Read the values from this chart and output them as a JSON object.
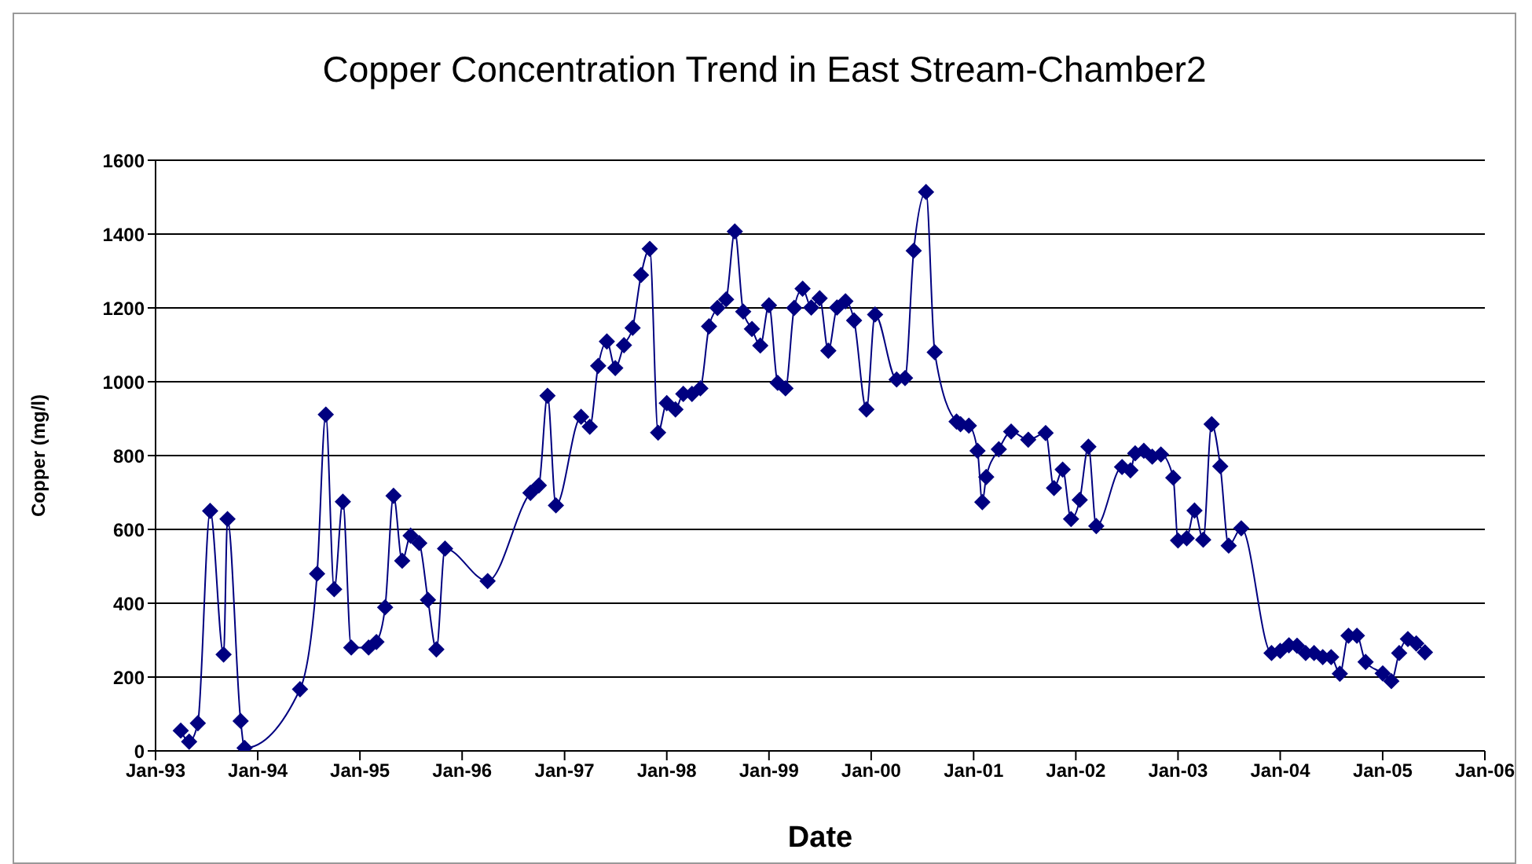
{
  "chart_data": {
    "type": "line",
    "title": "Copper Concentration Trend in East Stream-Chamber2",
    "xlabel": "Date",
    "ylabel": "Copper (mg/l)",
    "x": [
      "1993-04-01",
      "1993-05-01",
      "1993-06-01",
      "1993-07-15",
      "1993-09-01",
      "1993-09-15",
      "1993-11-01",
      "1993-11-15",
      "1994-06-01",
      "1994-08-01",
      "1994-09-01",
      "1994-10-01",
      "1994-11-01",
      "1994-12-01",
      "1995-02-01",
      "1995-03-01",
      "1995-04-01",
      "1995-05-01",
      "1995-06-01",
      "1995-07-01",
      "1995-08-01",
      "1995-09-01",
      "1995-10-01",
      "1995-11-01",
      "1996-04-01",
      "1996-09-01",
      "1996-10-01",
      "1996-11-01",
      "1996-12-01",
      "1997-03-01",
      "1997-04-01",
      "1997-05-01",
      "1997-06-01",
      "1997-07-01",
      "1997-08-01",
      "1997-09-01",
      "1997-10-01",
      "1997-11-01",
      "1997-12-01",
      "1998-01-01",
      "1998-02-01",
      "1998-03-01",
      "1998-04-01",
      "1998-05-01",
      "1998-06-01",
      "1998-07-01",
      "1998-08-01",
      "1998-09-01",
      "1998-10-01",
      "1998-11-01",
      "1998-12-01",
      "1999-01-01",
      "1999-02-01",
      "1999-03-01",
      "1999-04-01",
      "1999-05-01",
      "1999-06-01",
      "1999-07-01",
      "1999-08-01",
      "1999-09-01",
      "1999-10-01",
      "1999-11-01",
      "1999-12-15",
      "2000-01-15",
      "2000-04-01",
      "2000-05-01",
      "2000-06-01",
      "2000-07-15",
      "2000-08-15",
      "2000-11-01",
      "2000-11-15",
      "2000-12-15",
      "2001-01-15",
      "2001-02-01",
      "2001-02-15",
      "2001-04-01",
      "2001-05-15",
      "2001-07-15",
      "2001-09-15",
      "2001-10-15",
      "2001-11-15",
      "2001-12-15",
      "2002-01-15",
      "2002-02-15",
      "2002-03-15",
      "2002-06-15",
      "2002-07-15",
      "2002-08-01",
      "2002-09-01",
      "2002-10-01",
      "2002-11-01",
      "2002-12-15",
      "2003-01-01",
      "2003-02-01",
      "2003-03-01",
      "2003-04-01",
      "2003-05-01",
      "2003-06-01",
      "2003-07-01",
      "2003-08-15",
      "2003-12-01",
      "2004-01-01",
      "2004-02-01",
      "2004-03-01",
      "2004-04-01",
      "2004-05-01",
      "2004-06-01",
      "2004-07-01",
      "2004-08-01",
      "2004-09-01",
      "2004-10-01",
      "2004-11-01",
      "2005-01-01",
      "2005-02-01",
      "2005-03-01",
      "2005-04-01",
      "2005-05-01",
      "2005-06-01"
    ],
    "series": [
      {
        "color": "#000080",
        "values": [
          55,
          25,
          75,
          650,
          261,
          628,
          81,
          8,
          167,
          480,
          911,
          438,
          675,
          280,
          280,
          295,
          389,
          691,
          515,
          583,
          563,
          409,
          275,
          548,
          460,
          699,
          719,
          962,
          665,
          905,
          878,
          1043,
          1109,
          1037,
          1099,
          1146,
          1289,
          1360,
          862,
          942,
          925,
          967,
          967,
          982,
          1150,
          1200,
          1223,
          1407,
          1190,
          1143,
          1098,
          1207,
          997,
          982,
          1200,
          1252,
          1201,
          1226,
          1084,
          1201,
          1218,
          1166,
          925,
          1182,
          1006,
          1010,
          1355,
          1514,
          1080,
          892,
          885,
          881,
          813,
          674,
          742,
          817,
          865,
          843,
          861,
          712,
          762,
          628,
          680,
          824,
          609,
          769,
          760,
          806,
          813,
          797,
          803,
          740,
          570,
          576,
          651,
          572,
          885,
          771,
          556,
          603,
          265,
          271,
          286,
          285,
          265,
          265,
          254,
          254,
          209,
          312,
          312,
          241,
          210,
          189,
          265,
          303,
          291,
          267
        ]
      }
    ],
    "xlim": [
      "1993-01",
      "2006-01"
    ],
    "xticks": [
      {
        "value": "1993-01",
        "label": "Jan-93"
      },
      {
        "value": "1994-01",
        "label": "Jan-94"
      },
      {
        "value": "1995-01",
        "label": "Jan-95"
      },
      {
        "value": "1996-01",
        "label": "Jan-96"
      },
      {
        "value": "1997-01",
        "label": "Jan-97"
      },
      {
        "value": "1998-01",
        "label": "Jan-98"
      },
      {
        "value": "1999-01",
        "label": "Jan-99"
      },
      {
        "value": "2000-01",
        "label": "Jan-00"
      },
      {
        "value": "2001-01",
        "label": "Jan-01"
      },
      {
        "value": "2002-01",
        "label": "Jan-02"
      },
      {
        "value": "2003-01",
        "label": "Jan-03"
      },
      {
        "value": "2004-01",
        "label": "Jan-04"
      },
      {
        "value": "2005-01",
        "label": "Jan-05"
      },
      {
        "value": "2006-01",
        "label": "Jan-06"
      }
    ],
    "ylim": [
      0,
      1600
    ],
    "yticks": [
      0,
      200,
      400,
      600,
      800,
      1000,
      1200,
      1400,
      1600
    ],
    "grid": "y",
    "marker": "diamond",
    "line_style": "solid"
  }
}
